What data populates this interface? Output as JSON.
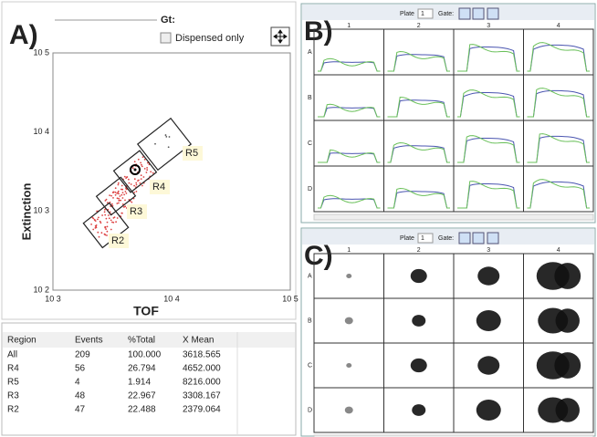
{
  "panel_a": {
    "label": "A)",
    "gate_label": "Gt:",
    "checkbox_label": "Dispensed only",
    "y_axis_label": "Extinction",
    "x_axis_label": "TOF",
    "y_ticks": [
      "10 5",
      "10 4",
      "10 3",
      "10 2"
    ],
    "x_ticks": [
      "10 3",
      "10 4",
      "10 5"
    ],
    "regions": [
      "R5",
      "R4",
      "R3",
      "R2"
    ]
  },
  "table": {
    "header": [
      "Region",
      "Events",
      "%Total",
      "X Mean"
    ],
    "rows": [
      [
        "All",
        "209",
        "100.000",
        "3618.565"
      ],
      [
        "R4",
        "56",
        "26.794",
        "4652.000"
      ],
      [
        "R5",
        "4",
        "1.914",
        "8216.000"
      ],
      [
        "R3",
        "48",
        "22.967",
        "3308.167"
      ],
      [
        "R2",
        "47",
        "22.488",
        "2379.064"
      ]
    ]
  },
  "panel_b": {
    "label": "B)",
    "plate_label": "Plate",
    "plate_value": "1",
    "gate_label": "Gate:",
    "columns": [
      "1",
      "2",
      "3",
      "4"
    ],
    "rows": [
      "A",
      "B",
      "C",
      "D"
    ]
  },
  "panel_c": {
    "label": "C)",
    "plate_label": "Plate",
    "plate_value": "1",
    "gate_label": "Gate:",
    "columns": [
      "1",
      "2",
      "3",
      "4"
    ],
    "rows": [
      "A",
      "B",
      "C",
      "D"
    ]
  }
}
